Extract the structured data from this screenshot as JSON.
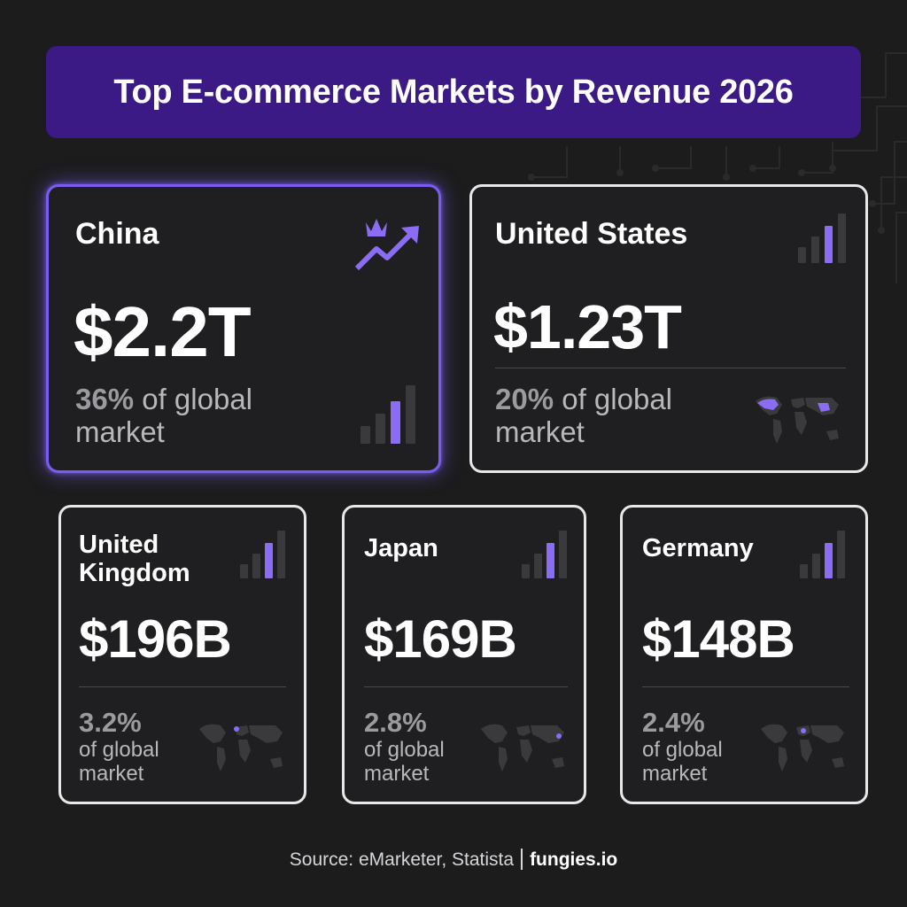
{
  "title": "Top E-commerce Markets by Revenue 2026",
  "colors": {
    "accent": "#7a5cf0",
    "title_bg": "#3b1a86",
    "background": "#1c1c1d",
    "card_border": "#e8e8ea"
  },
  "cards": [
    {
      "name": "China",
      "value": "$2.2T",
      "share_pct": "36%",
      "share_text": "of global market",
      "icon": "crown-trend-up-icon",
      "secondary_icon": "signal-bars-icon"
    },
    {
      "name": "United States",
      "value": "$1.23T",
      "share_pct": "20%",
      "share_text": "of global market",
      "icon": "signal-bars-icon",
      "secondary_icon": "world-map-icon"
    },
    {
      "name": "United Kingdom",
      "value": "$196B",
      "share_pct": "3.2%",
      "share_text": "of global market",
      "icon": "signal-bars-icon",
      "secondary_icon": "world-map-icon"
    },
    {
      "name": "Japan",
      "value": "$169B",
      "share_pct": "2.8%",
      "share_text": "of global market",
      "icon": "signal-bars-icon",
      "secondary_icon": "world-map-icon"
    },
    {
      "name": "Germany",
      "value": "$148B",
      "share_pct": "2.4%",
      "share_text": "of global market",
      "icon": "signal-bars-icon",
      "secondary_icon": "world-map-icon"
    }
  ],
  "footer": {
    "source": "Source: eMarketer, Statista",
    "brand": "fungies.io"
  }
}
